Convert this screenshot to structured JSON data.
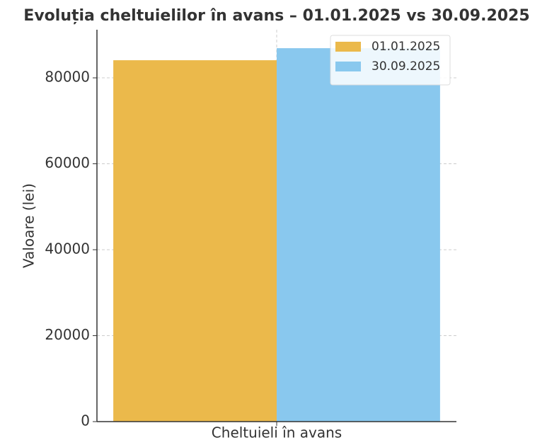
{
  "chart_data": {
    "type": "bar",
    "title": "Evoluția cheltuielilor în avans – 01.01.2025 vs 30.09.2025",
    "ylabel": "Valoare (lei)",
    "categories": [
      "Cheltuieli în avans"
    ],
    "series": [
      {
        "name": "01.01.2025",
        "color": "#ebb94b",
        "values": [
          84100
        ]
      },
      {
        "name": "30.09.2025",
        "color": "#89c8ee",
        "values": [
          86900
        ]
      }
    ],
    "ylim": [
      0,
      91200
    ],
    "yticks": [
      0,
      20000,
      40000,
      60000,
      80000
    ],
    "grid": true,
    "legend": "upper right"
  }
}
